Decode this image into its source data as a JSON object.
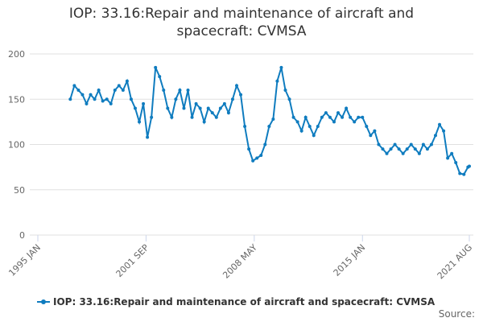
{
  "chart_data": {
    "type": "line",
    "title": "IOP: 33.16:Repair and maintenance of aircraft and spacecraft: CVMSA",
    "x": [
      1997,
      1997.25,
      1997.5,
      1997.75,
      1998,
      1998.25,
      1998.5,
      1998.75,
      1999,
      1999.25,
      1999.5,
      1999.75,
      2000,
      2000.25,
      2000.5,
      2000.75,
      2001,
      2001.25,
      2001.5,
      2001.75,
      2002,
      2002.25,
      2002.5,
      2002.75,
      2003,
      2003.25,
      2003.5,
      2003.75,
      2004,
      2004.25,
      2004.5,
      2004.75,
      2005,
      2005.25,
      2005.5,
      2005.75,
      2006,
      2006.25,
      2006.5,
      2006.75,
      2007,
      2007.25,
      2007.5,
      2007.75,
      2008,
      2008.25,
      2008.5,
      2008.75,
      2009,
      2009.25,
      2009.5,
      2009.75,
      2010,
      2010.25,
      2010.5,
      2010.75,
      2011,
      2011.25,
      2011.5,
      2011.75,
      2012,
      2012.25,
      2012.5,
      2012.75,
      2013,
      2013.25,
      2013.5,
      2013.75,
      2014,
      2014.25,
      2014.5,
      2014.75,
      2015,
      2015.25,
      2015.5,
      2015.75,
      2016,
      2016.25,
      2016.5,
      2016.75,
      2017,
      2017.25,
      2017.5,
      2017.75,
      2018,
      2018.25,
      2018.5,
      2018.75,
      2019,
      2019.25,
      2019.5,
      2019.75,
      2020,
      2020.25,
      2020.5,
      2020.75,
      2021,
      2021.25,
      2021.5,
      2021.583
    ],
    "series": [
      {
        "name": "IOP: 33.16:Repair and maintenance of aircraft and spacecraft: CVMSA",
        "color": "#0f7cbf",
        "values": [
          150,
          165,
          160,
          155,
          145,
          155,
          150,
          160,
          148,
          150,
          145,
          160,
          165,
          160,
          170,
          150,
          140,
          125,
          145,
          108,
          130,
          185,
          175,
          160,
          140,
          130,
          150,
          160,
          140,
          160,
          130,
          145,
          140,
          125,
          140,
          135,
          130,
          140,
          145,
          135,
          150,
          165,
          155,
          120,
          95,
          82,
          85,
          88,
          100,
          120,
          128,
          170,
          185,
          160,
          150,
          130,
          125,
          115,
          130,
          120,
          110,
          120,
          130,
          135,
          130,
          125,
          135,
          130,
          140,
          130,
          125,
          130,
          130,
          120,
          110,
          115,
          100,
          95,
          90,
          95,
          100,
          95,
          90,
          95,
          100,
          95,
          90,
          100,
          95,
          100,
          110,
          122,
          115,
          85,
          90,
          80,
          68,
          67,
          75,
          76
        ]
      }
    ],
    "xlim": [
      1995,
      2021.583
    ],
    "xticks": [
      {
        "value": 1995,
        "label": "1995 JAN"
      },
      {
        "value": 2001.667,
        "label": "2001 SEP"
      },
      {
        "value": 2008.333,
        "label": "2008 MAY"
      },
      {
        "value": 2015,
        "label": "2015 JAN"
      },
      {
        "value": 2021.583,
        "label": "2021 AUG"
      }
    ],
    "ylim": [
      0,
      200
    ],
    "yticks": [
      0,
      50,
      100,
      150,
      200
    ],
    "grid": true,
    "source": "Source:"
  }
}
